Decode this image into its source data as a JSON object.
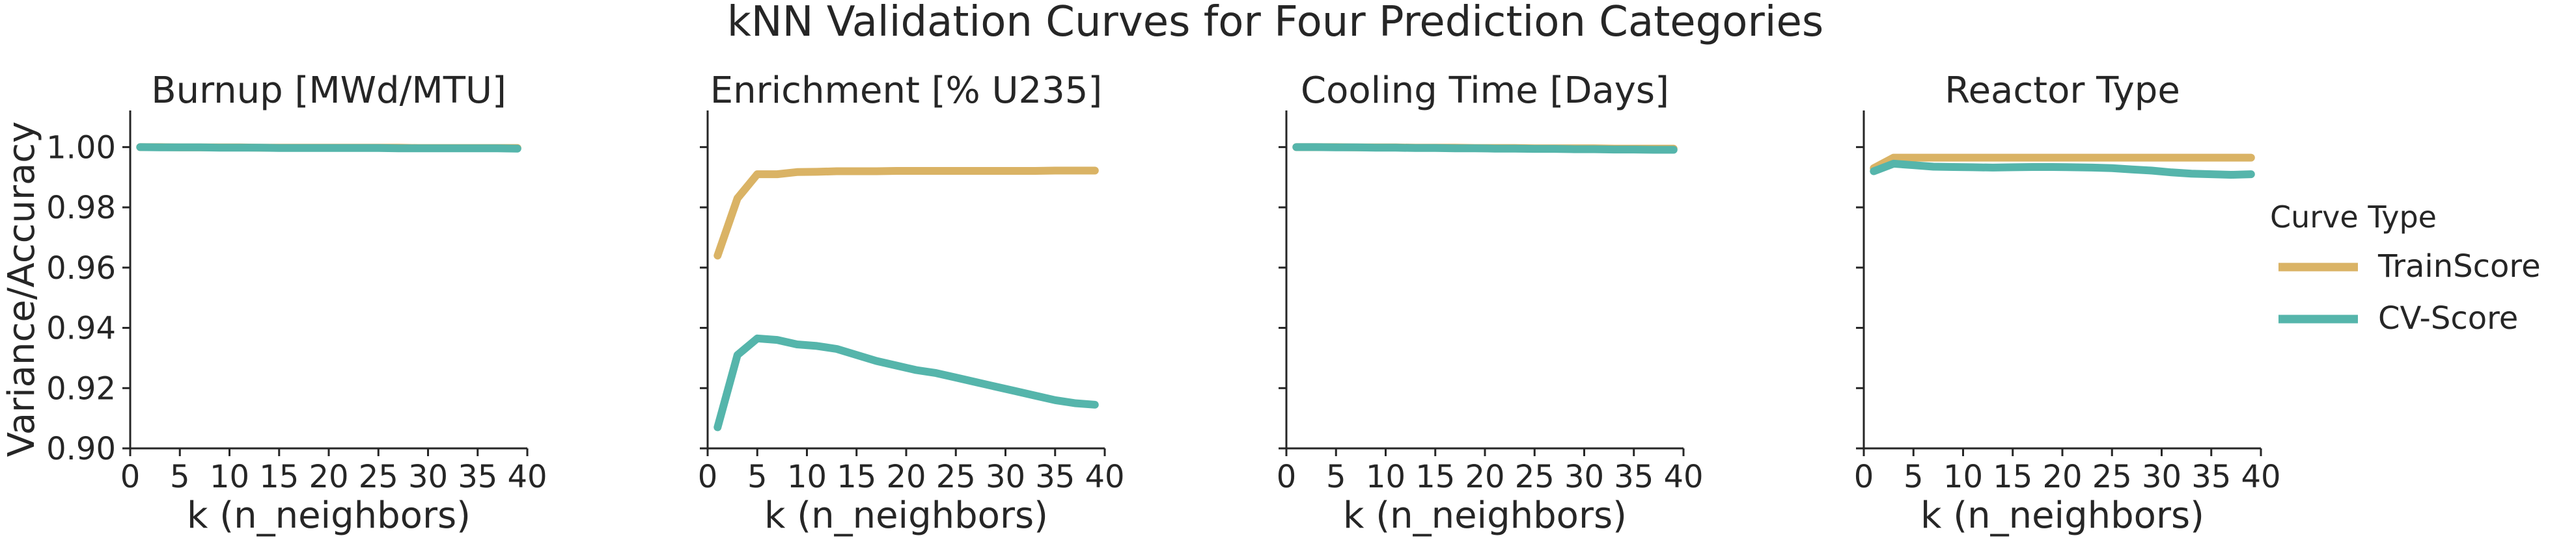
{
  "figure_title": "kNN Validation Curves for Four Prediction Categories",
  "legend": {
    "title": "Curve Type",
    "items": [
      {
        "label": "TrainScore",
        "color": "#DAB365"
      },
      {
        "label": "CV-Score",
        "color": "#55B5AB"
      }
    ]
  },
  "colors": {
    "train": "#DAB365",
    "cv": "#55B5AB",
    "axis": "#262626"
  },
  "chart_data": [
    {
      "type": "line",
      "title": "Burnup [MWd/MTU]",
      "xlabel": "k (n_neighbors)",
      "ylabel": "Variance/Accuracy",
      "xlim": [
        0,
        40
      ],
      "ylim": [
        0.9,
        1.01
      ],
      "xticks": [
        "0",
        "5",
        "10",
        "15",
        "20",
        "25",
        "30",
        "35",
        "40"
      ],
      "yticks": [
        "0.90",
        "0.92",
        "0.94",
        "0.96",
        "0.98",
        "1.00"
      ],
      "grid": false,
      "x": [
        1,
        3,
        5,
        7,
        9,
        11,
        13,
        15,
        17,
        19,
        21,
        23,
        25,
        27,
        29,
        31,
        33,
        35,
        37,
        39
      ],
      "series": [
        {
          "name": "TrainScore",
          "values": [
            1.0,
            1.0,
            0.9999,
            0.9999,
            0.9999,
            0.9999,
            0.9998,
            0.9998,
            0.9998,
            0.9998,
            0.9998,
            0.9998,
            0.9998,
            0.9998,
            0.9997,
            0.9997,
            0.9997,
            0.9997,
            0.9997,
            0.9997
          ]
        },
        {
          "name": "CV-Score",
          "values": [
            1.0,
            0.9999,
            0.9999,
            0.9999,
            0.9998,
            0.9998,
            0.9998,
            0.9997,
            0.9997,
            0.9997,
            0.9997,
            0.9997,
            0.9997,
            0.9996,
            0.9996,
            0.9996,
            0.9996,
            0.9996,
            0.9996,
            0.9995
          ]
        }
      ]
    },
    {
      "type": "line",
      "title": "Enrichment [% U235]",
      "xlabel": "k (n_neighbors)",
      "xlim": [
        0,
        40
      ],
      "ylim": [
        0.9,
        1.01
      ],
      "xticks": [
        "0",
        "5",
        "10",
        "15",
        "20",
        "25",
        "30",
        "35",
        "40"
      ],
      "grid": false,
      "x": [
        1,
        3,
        5,
        7,
        9,
        11,
        13,
        15,
        17,
        19,
        21,
        23,
        25,
        27,
        29,
        31,
        33,
        35,
        37,
        39
      ],
      "series": [
        {
          "name": "TrainScore",
          "values": [
            0.964,
            0.983,
            0.991,
            0.991,
            0.9917,
            0.9918,
            0.992,
            0.992,
            0.992,
            0.9921,
            0.9921,
            0.9921,
            0.9921,
            0.9921,
            0.9921,
            0.9921,
            0.9921,
            0.9922,
            0.9922,
            0.9922
          ]
        },
        {
          "name": "CV-Score",
          "values": [
            0.907,
            0.931,
            0.9365,
            0.936,
            0.9345,
            0.934,
            0.933,
            0.931,
            0.929,
            0.9275,
            0.926,
            0.925,
            0.9235,
            0.922,
            0.9205,
            0.919,
            0.9175,
            0.916,
            0.915,
            0.9145
          ]
        }
      ]
    },
    {
      "type": "line",
      "title": "Cooling Time [Days]",
      "xlabel": "k (n_neighbors)",
      "xlim": [
        0,
        40
      ],
      "ylim": [
        0.9,
        1.01
      ],
      "xticks": [
        "0",
        "5",
        "10",
        "15",
        "20",
        "25",
        "30",
        "35",
        "40"
      ],
      "grid": false,
      "x": [
        1,
        3,
        5,
        7,
        9,
        11,
        13,
        15,
        17,
        19,
        21,
        23,
        25,
        27,
        29,
        31,
        33,
        35,
        37,
        39
      ],
      "series": [
        {
          "name": "TrainScore",
          "values": [
            1.0,
            1.0,
            1.0,
            0.9999,
            0.9999,
            0.9999,
            0.9998,
            0.9998,
            0.9998,
            0.9997,
            0.9997,
            0.9997,
            0.9996,
            0.9996,
            0.9996,
            0.9996,
            0.9995,
            0.9995,
            0.9995,
            0.9995
          ]
        },
        {
          "name": "CV-Score",
          "values": [
            1.0,
            1.0,
            0.9999,
            0.9999,
            0.9998,
            0.9998,
            0.9997,
            0.9997,
            0.9996,
            0.9996,
            0.9995,
            0.9995,
            0.9994,
            0.9994,
            0.9993,
            0.9993,
            0.9992,
            0.9992,
            0.9991,
            0.9991
          ]
        }
      ]
    },
    {
      "type": "line",
      "title": "Reactor Type",
      "xlabel": "k (n_neighbors)",
      "xlim": [
        0,
        40
      ],
      "ylim": [
        0.9,
        1.01
      ],
      "xticks": [
        "0",
        "5",
        "10",
        "15",
        "20",
        "25",
        "30",
        "35",
        "40"
      ],
      "grid": false,
      "x": [
        1,
        3,
        5,
        7,
        9,
        11,
        13,
        15,
        17,
        19,
        21,
        23,
        25,
        27,
        29,
        31,
        33,
        35,
        37,
        39
      ],
      "series": [
        {
          "name": "TrainScore",
          "values": [
            0.993,
            0.9965,
            0.9965,
            0.9965,
            0.9965,
            0.9965,
            0.9965,
            0.9965,
            0.9965,
            0.9965,
            0.9965,
            0.9965,
            0.9965,
            0.9965,
            0.9965,
            0.9965,
            0.9965,
            0.9965,
            0.9965,
            0.9965
          ]
        },
        {
          "name": "CV-Score",
          "values": [
            0.992,
            0.9945,
            0.994,
            0.9935,
            0.9934,
            0.9933,
            0.9932,
            0.9933,
            0.9934,
            0.9934,
            0.9933,
            0.9932,
            0.993,
            0.9926,
            0.9922,
            0.9916,
            0.9912,
            0.991,
            0.9908,
            0.991
          ]
        }
      ]
    }
  ]
}
